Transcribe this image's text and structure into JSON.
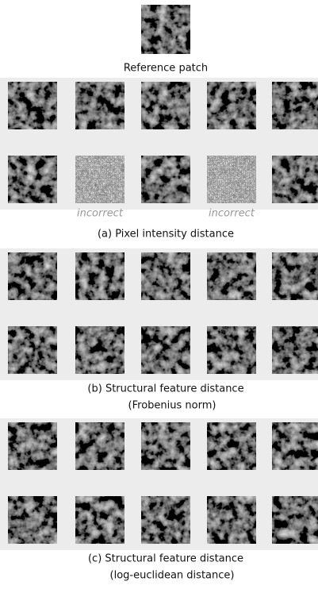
{
  "reference": {
    "label": "Reference patch"
  },
  "panels": [
    {
      "notes": [
        "incorrect",
        "incorrect"
      ],
      "caption": [
        "(a) Pixel intensity distance"
      ]
    },
    {
      "notes": [],
      "caption": [
        "(b) Structural feature distance",
        "(Frobenius norm)"
      ]
    },
    {
      "notes": [],
      "caption": [
        "(c) Structural feature distance",
        "(log-euclidean distance)"
      ]
    }
  ]
}
